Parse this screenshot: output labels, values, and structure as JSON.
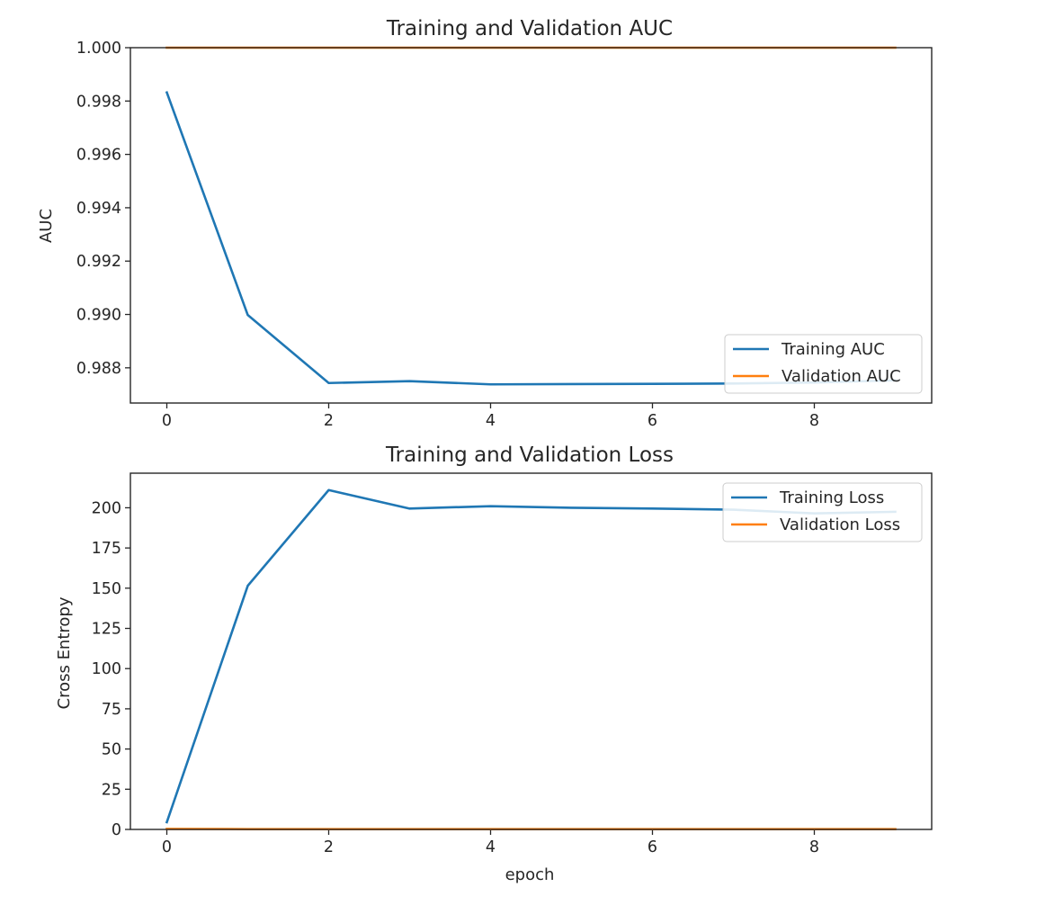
{
  "chart_data": [
    {
      "type": "line",
      "title": "Training and Validation AUC",
      "xlabel": "",
      "ylabel": "AUC",
      "xlim": [
        -0.45,
        9.45
      ],
      "ylim": [
        0.98668,
        1.0
      ],
      "xticks": [
        0,
        2,
        4,
        6,
        8
      ],
      "yticks": [
        0.988,
        0.99,
        0.992,
        0.994,
        0.996,
        0.998,
        1.0
      ],
      "ytick_labels": [
        "0.988",
        "0.990",
        "0.992",
        "0.994",
        "0.996",
        "0.998",
        "1.000"
      ],
      "grid": false,
      "legend_position": "lower-right",
      "x": [
        0,
        1,
        2,
        3,
        4,
        5,
        6,
        7,
        8,
        9
      ],
      "series": [
        {
          "name": "Training AUC",
          "color": "#1f77b4",
          "values": [
            0.99832,
            0.98998,
            0.98743,
            0.9875,
            0.98738,
            0.98739,
            0.9874,
            0.98741,
            0.98745,
            0.98753
          ]
        },
        {
          "name": "Validation AUC",
          "color": "#ff7f0e",
          "values": [
            1.0,
            1.0,
            1.0,
            1.0,
            1.0,
            1.0,
            1.0,
            1.0,
            1.0,
            1.0
          ]
        }
      ]
    },
    {
      "type": "line",
      "title": "Training and Validation Loss",
      "xlabel": "epoch",
      "ylabel": "Cross Entropy",
      "xlim": [
        -0.45,
        9.45
      ],
      "ylim": [
        0,
        221.5
      ],
      "xticks": [
        0,
        2,
        4,
        6,
        8
      ],
      "yticks": [
        0,
        25,
        50,
        75,
        100,
        125,
        150,
        175,
        200
      ],
      "ytick_labels": [
        "0",
        "25",
        "50",
        "75",
        "100",
        "125",
        "150",
        "175",
        "200"
      ],
      "grid": false,
      "legend_position": "upper-right",
      "x": [
        0,
        1,
        2,
        3,
        4,
        5,
        6,
        7,
        8,
        9
      ],
      "series": [
        {
          "name": "Training Loss",
          "color": "#1f77b4",
          "values": [
            4.5,
            151.5,
            211.0,
            199.5,
            201.0,
            200.0,
            199.5,
            198.8,
            196.5,
            197.5
          ]
        },
        {
          "name": "Validation Loss",
          "color": "#ff7f0e",
          "values": [
            0.3,
            0.2,
            0.2,
            0.2,
            0.2,
            0.2,
            0.2,
            0.2,
            0.2,
            0.2
          ]
        }
      ]
    }
  ]
}
